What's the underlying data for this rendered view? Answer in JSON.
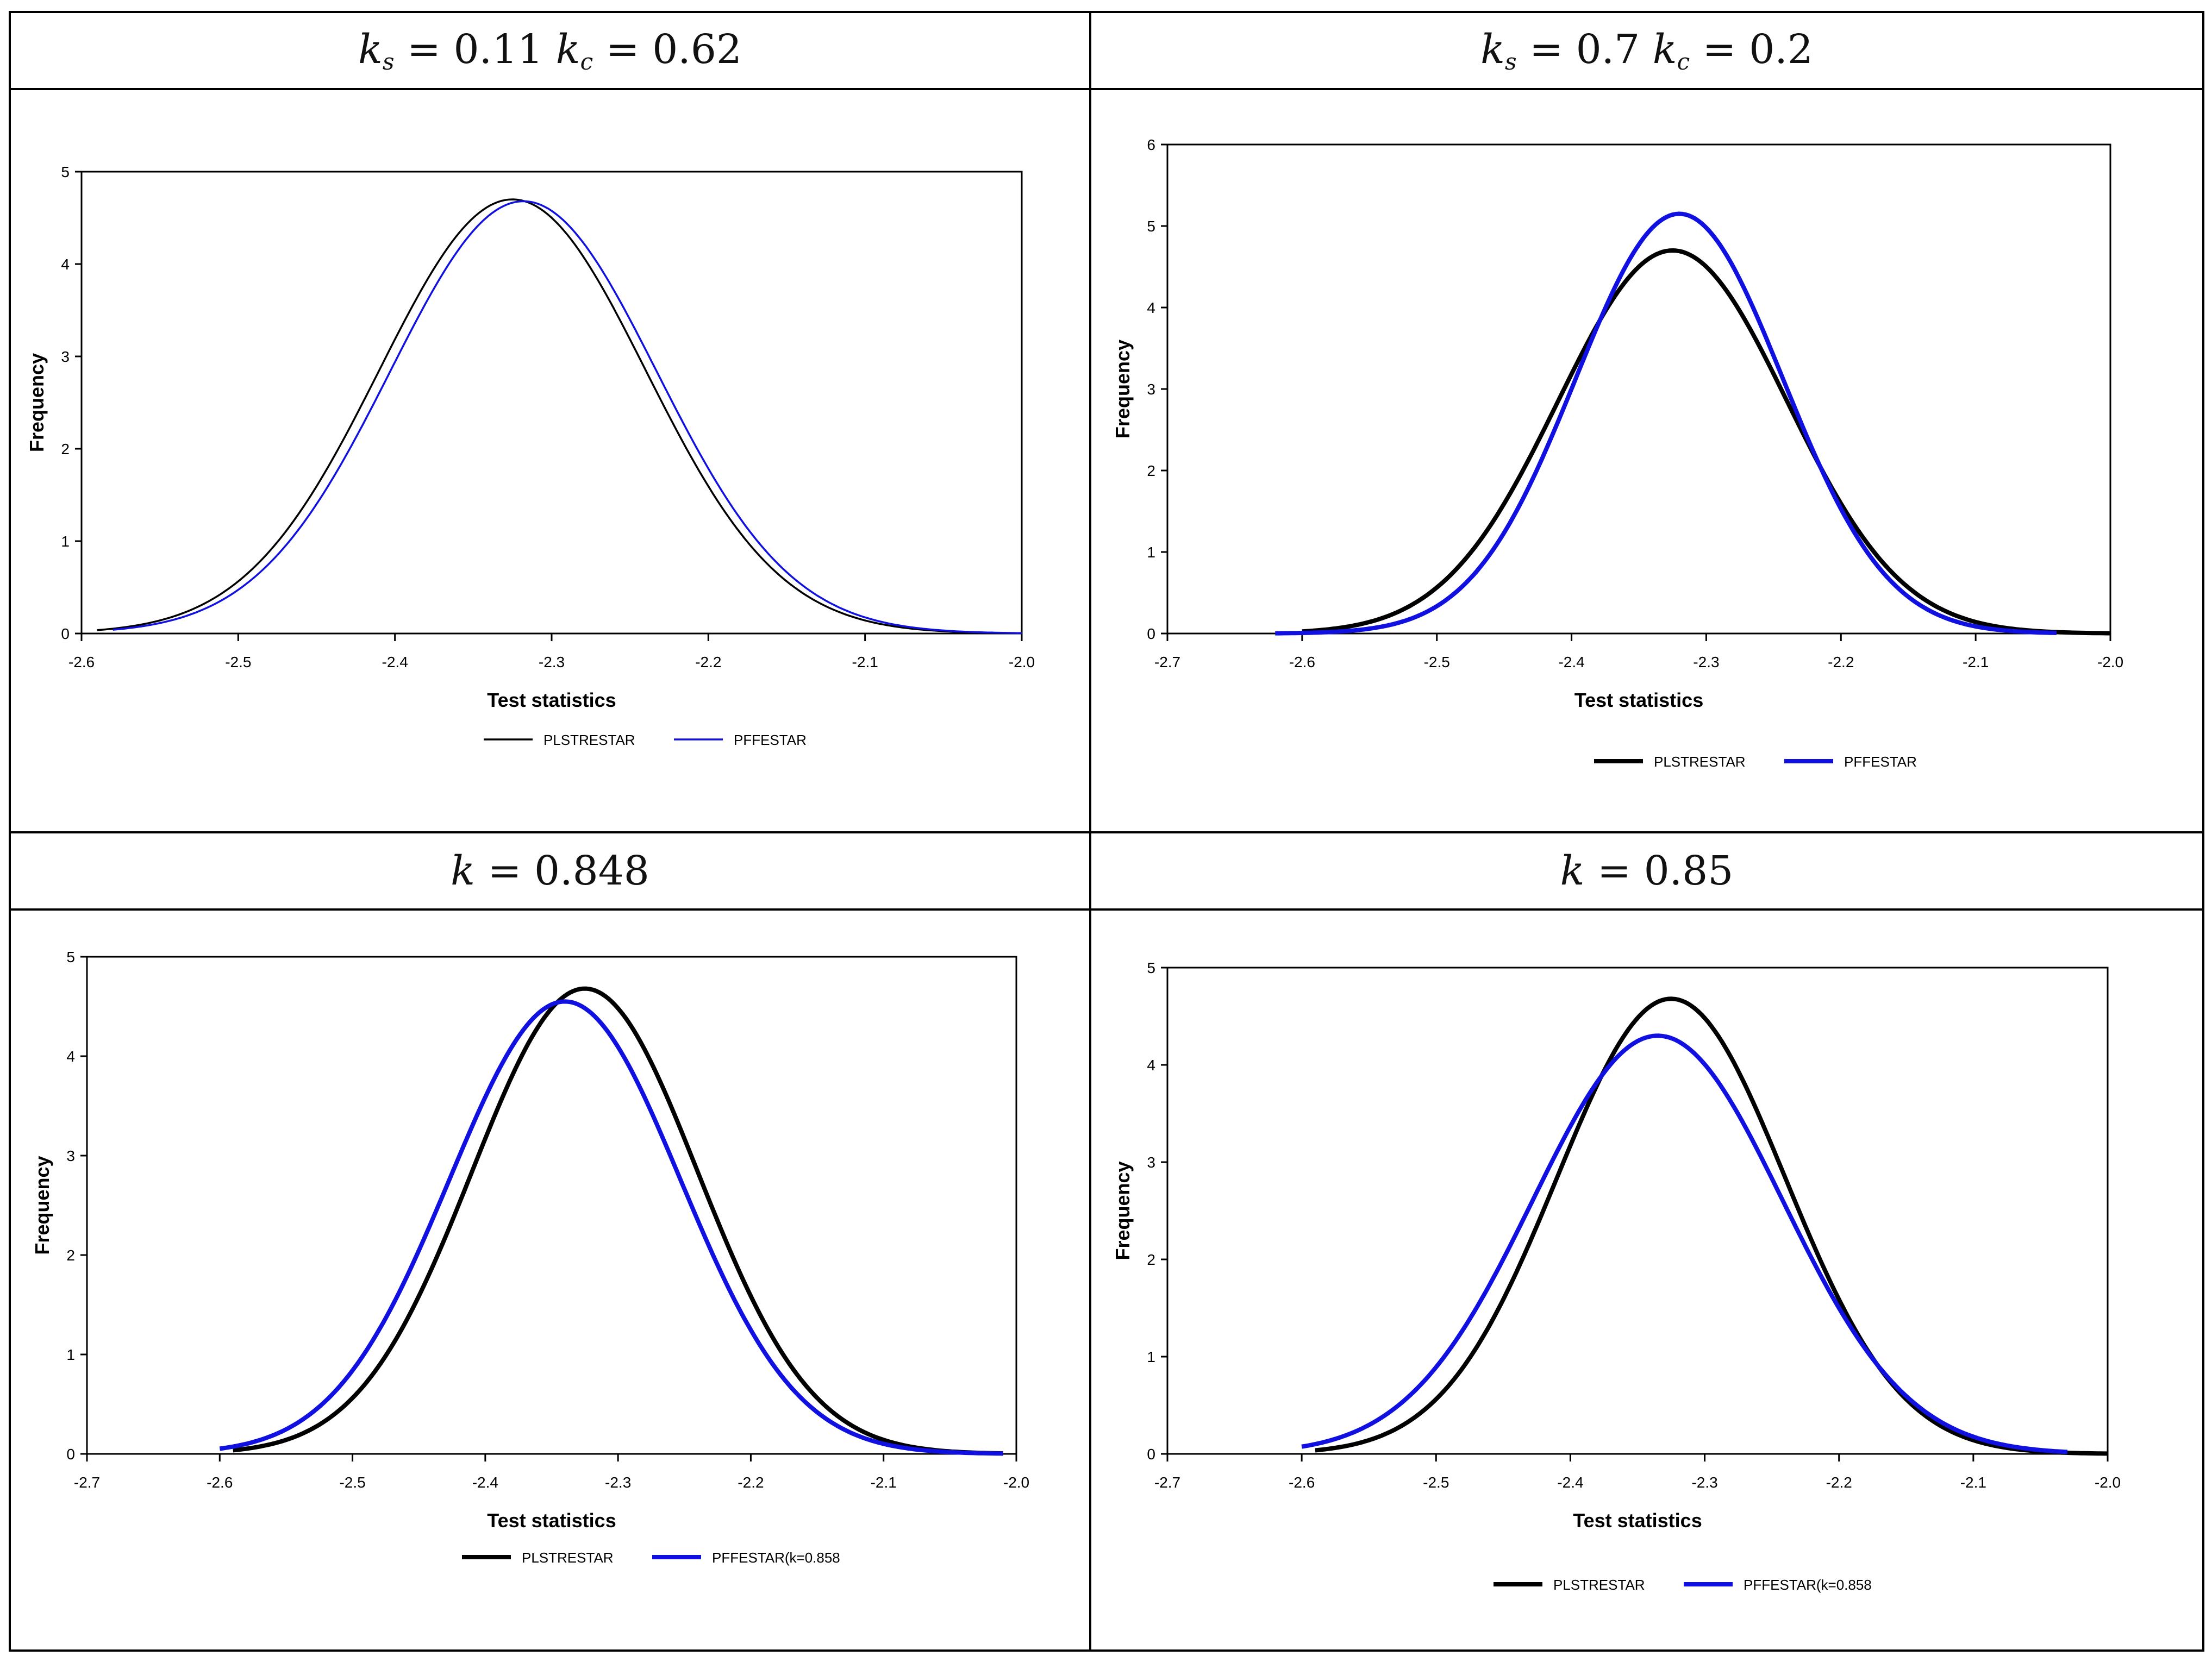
{
  "panels": [
    {
      "id": "p1",
      "title": {
        "k_label": "k",
        "s_sub": "s",
        "s_val": "0.11",
        "c_sub": "c",
        "c_val": "0.62"
      },
      "chart_data": {
        "type": "line",
        "xlabel": "Test statistics",
        "ylabel": "Frequency",
        "xlim": [
          -2.6,
          -2.0
        ],
        "ylim": [
          0,
          5
        ],
        "xticks": [
          "-2.6",
          "-2.5",
          "-2.4",
          "-2.3",
          "-2.2",
          "-2.1",
          "-2.0"
        ],
        "yticks": [
          "0",
          "1",
          "2",
          "3",
          "4",
          "5"
        ],
        "series": [
          {
            "name": "PLSTRESTAR",
            "color": "#000000",
            "mean": -2.325,
            "sd": 0.085,
            "peak": 4.7,
            "x_start": -2.59,
            "x_end": -2.0
          },
          {
            "name": "PFFESTAR",
            "color": "#1010e0",
            "mean": -2.318,
            "sd": 0.085,
            "peak": 4.68,
            "x_start": -2.58,
            "x_end": -2.0
          }
        ]
      }
    },
    {
      "id": "p2",
      "title": {
        "k_label": "k",
        "s_sub": "s",
        "s_val": "0.7",
        "c_sub": "c",
        "c_val": "0.2"
      },
      "chart_data": {
        "type": "line",
        "xlabel": "Test statistics",
        "ylabel": "Frequency",
        "xlim": [
          -2.7,
          -2.0
        ],
        "ylim": [
          0,
          6
        ],
        "xticks": [
          "-2.7",
          "-2.6",
          "-2.5",
          "-2.4",
          "-2.3",
          "-2.2",
          "-2.1",
          "-2.0"
        ],
        "yticks": [
          "0",
          "1",
          "2",
          "3",
          "4",
          "5",
          "6"
        ],
        "series": [
          {
            "name": "PLSTRESTAR",
            "color": "#000000",
            "mean": -2.325,
            "sd": 0.085,
            "peak": 4.7,
            "x_start": -2.6,
            "x_end": -2.0
          },
          {
            "name": "PFFESTAR",
            "color": "#1010e0",
            "mean": -2.32,
            "sd": 0.077,
            "peak": 5.15,
            "x_start": -2.62,
            "x_end": -2.04
          }
        ]
      }
    },
    {
      "id": "p3",
      "title": {
        "k_label": "k",
        "k_val": "0.848"
      },
      "chart_data": {
        "type": "line",
        "xlabel": "Test statistics",
        "ylabel": "Frequency",
        "xlim": [
          -2.7,
          -2.0
        ],
        "ylim": [
          0,
          5
        ],
        "xticks": [
          "-2.7",
          "-2.6",
          "-2.5",
          "-2.4",
          "-2.3",
          "-2.2",
          "-2.1",
          "-2.0"
        ],
        "yticks": [
          "0",
          "1",
          "2",
          "3",
          "4",
          "5"
        ],
        "series": [
          {
            "name": "PLSTRESTAR",
            "color": "#000000",
            "mean": -2.325,
            "sd": 0.085,
            "peak": 4.68,
            "x_start": -2.59,
            "x_end": -2.01
          },
          {
            "name": "PFFESTAR(k=0.858",
            "color": "#1010e0",
            "mean": -2.34,
            "sd": 0.087,
            "peak": 4.55,
            "x_start": -2.6,
            "x_end": -2.01
          }
        ]
      }
    },
    {
      "id": "p4",
      "title": {
        "k_label": "k",
        "k_val": "0.85"
      },
      "chart_data": {
        "type": "line",
        "xlabel": "Test statistics",
        "ylabel": "Frequency",
        "xlim": [
          -2.7,
          -2.0
        ],
        "ylim": [
          0,
          5
        ],
        "xticks": [
          "-2.7",
          "-2.6",
          "-2.5",
          "-2.4",
          "-2.3",
          "-2.2",
          "-2.1",
          "-2.0"
        ],
        "yticks": [
          "0",
          "1",
          "2",
          "3",
          "4",
          "5"
        ],
        "series": [
          {
            "name": "PLSTRESTAR",
            "color": "#000000",
            "mean": -2.325,
            "sd": 0.085,
            "peak": 4.68,
            "x_start": -2.59,
            "x_end": -2.0
          },
          {
            "name": "PFFESTAR(k=0.858",
            "color": "#1010e0",
            "mean": -2.335,
            "sd": 0.093,
            "peak": 4.3,
            "x_start": -2.6,
            "x_end": -2.03
          }
        ]
      }
    }
  ]
}
